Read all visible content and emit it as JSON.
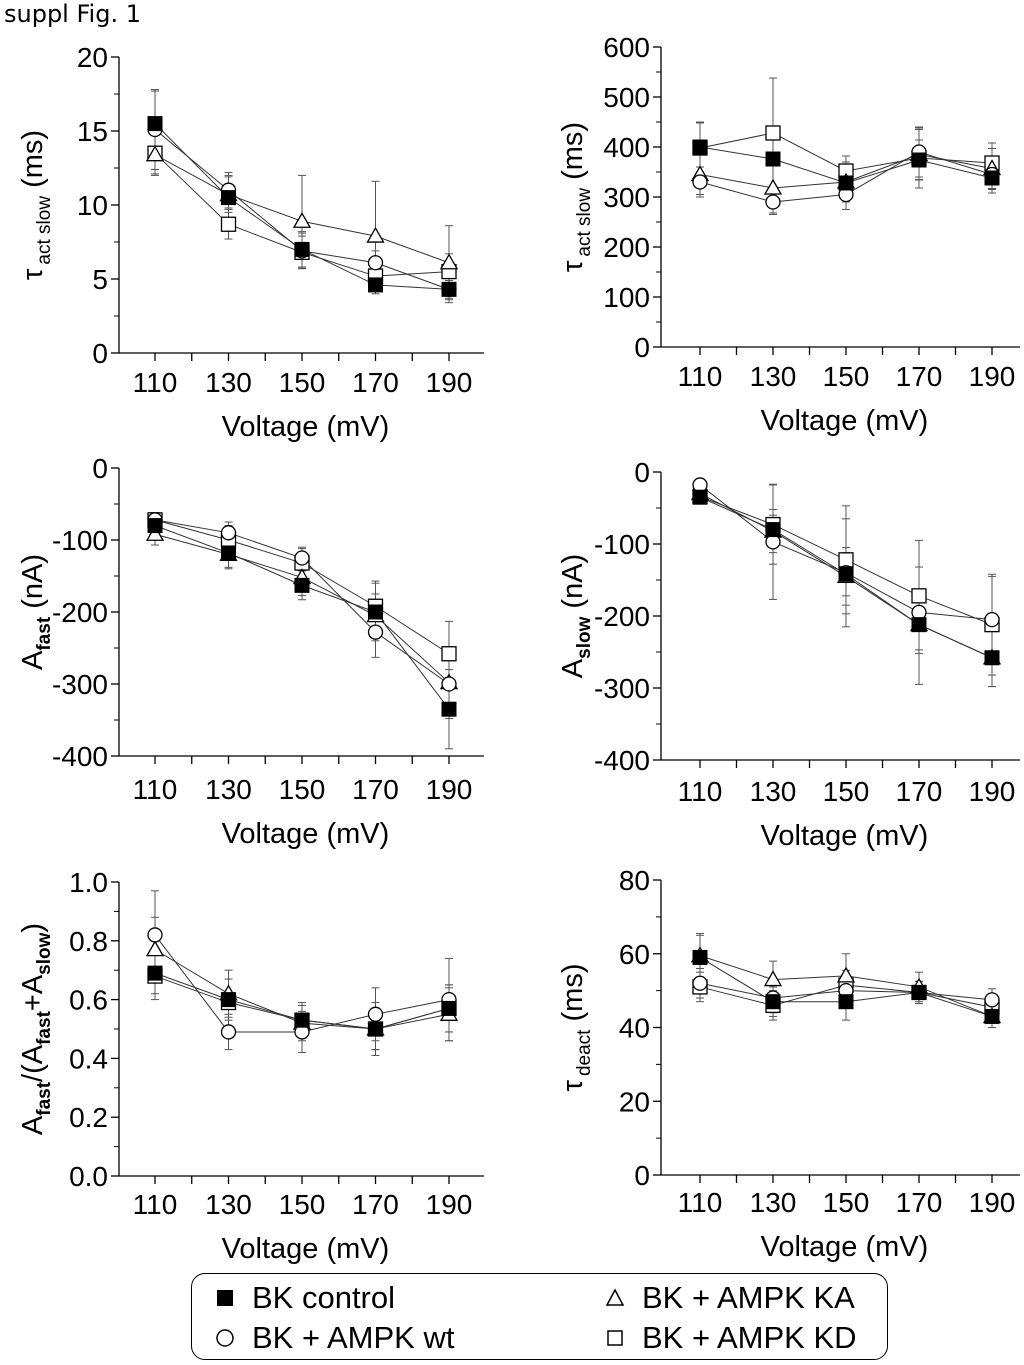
{
  "figure_label": "suppl Fig. 1",
  "markers": {
    "fill_closed": "#000000",
    "fill_open": "#ffffff",
    "line": "#333333"
  },
  "legend": [
    {
      "label": "BK control",
      "marker": "filled-square"
    },
    {
      "label": "BK + AMPK wt",
      "marker": "open-circle"
    },
    {
      "label": "BK + AMPK KA",
      "marker": "open-triangle"
    },
    {
      "label": "BK + AMPK KD",
      "marker": "open-square"
    }
  ],
  "chart_data": [
    {
      "type": "line",
      "ylabel_main": "τ",
      "ylabel_sub": "act slow",
      "ylabel_tail": "(ms)",
      "xlabel": "Voltage (mV)",
      "categories": [
        "110",
        "130",
        "150",
        "170",
        "190"
      ],
      "ylim": [
        0,
        20
      ],
      "yticks": [
        "0",
        "5",
        "10",
        "15",
        "20"
      ],
      "series": [
        {
          "name": "BK control",
          "marker": "filled-square",
          "values": [
            15.5,
            10.5,
            7.0,
            4.6,
            4.3
          ],
          "err": [
            2.2,
            1.5,
            1.2,
            0.6,
            0.6
          ]
        },
        {
          "name": "BK + AMPK wt",
          "marker": "open-circle",
          "values": [
            15.1,
            11.0,
            6.9,
            6.1,
            4.3
          ],
          "err": [
            2.7,
            1.2,
            1.2,
            0.8,
            0.9
          ]
        },
        {
          "name": "BK + AMPK KA",
          "marker": "open-triangle",
          "values": [
            13.4,
            10.7,
            8.9,
            7.9,
            6.1
          ],
          "err": [
            1.3,
            1.2,
            3.1,
            3.7,
            2.5
          ]
        },
        {
          "name": "BK + AMPK KD",
          "marker": "open-square",
          "values": [
            13.5,
            8.7,
            6.8,
            5.2,
            5.5
          ],
          "err": [
            1.5,
            1.0,
            1.1,
            1.0,
            1.2
          ]
        }
      ]
    },
    {
      "type": "line",
      "ylabel_main": "τ",
      "ylabel_sub": "act slow",
      "ylabel_tail": "(ms)",
      "xlabel": "Voltage (mV)",
      "categories": [
        "110",
        "130",
        "150",
        "170",
        "190"
      ],
      "ylim": [
        0,
        600
      ],
      "yticks": [
        "0",
        "100",
        "200",
        "300",
        "400",
        "500",
        "600"
      ],
      "series": [
        {
          "name": "BK control",
          "marker": "filled-square",
          "values": [
            400,
            376,
            328,
            374,
            338
          ],
          "err": [
            50,
            60,
            30,
            40,
            30
          ]
        },
        {
          "name": "BK + AMPK wt",
          "marker": "open-circle",
          "values": [
            330,
            290,
            305,
            390,
            345
          ],
          "err": [
            30,
            25,
            30,
            50,
            30
          ]
        },
        {
          "name": "BK + AMPK KA",
          "marker": "open-triangle",
          "values": [
            345,
            318,
            330,
            385,
            357
          ],
          "err": [
            40,
            50,
            40,
            50,
            40
          ]
        },
        {
          "name": "BK + AMPK KD",
          "marker": "open-square",
          "values": [
            398,
            428,
            352,
            378,
            368
          ],
          "err": [
            50,
            110,
            30,
            60,
            40
          ]
        }
      ]
    },
    {
      "type": "line",
      "ylabel_main": "A",
      "ylabel_sub": "fast",
      "ylabel_tail": "(nA)",
      "xlabel": "Voltage (mV)",
      "categories": [
        "110",
        "130",
        "150",
        "170",
        "190"
      ],
      "ylim": [
        -400,
        0
      ],
      "yticks": [
        "-400",
        "-300",
        "-200",
        "-100",
        "0"
      ],
      "series": [
        {
          "name": "BK control",
          "marker": "filled-square",
          "values": [
            -80,
            -118,
            -163,
            -200,
            -335
          ],
          "err": [
            15,
            20,
            20,
            40,
            55
          ]
        },
        {
          "name": "BK + AMPK wt",
          "marker": "open-circle",
          "values": [
            -72,
            -90,
            -125,
            -228,
            -300
          ],
          "err": [
            10,
            15,
            15,
            35,
            40
          ]
        },
        {
          "name": "BK + AMPK KA",
          "marker": "open-triangle",
          "values": [
            -92,
            -120,
            -152,
            -205,
            -298
          ],
          "err": [
            15,
            20,
            25,
            30,
            50
          ]
        },
        {
          "name": "BK + AMPK KD",
          "marker": "open-square",
          "values": [
            -72,
            -100,
            -132,
            -192,
            -258
          ],
          "err": [
            10,
            20,
            20,
            35,
            45
          ]
        }
      ]
    },
    {
      "type": "line",
      "ylabel_main": "A",
      "ylabel_sub": "slow",
      "ylabel_tail": "(nA)",
      "xlabel": "Voltage (mV)",
      "categories": [
        "110",
        "130",
        "150",
        "170",
        "190"
      ],
      "ylim": [
        -400,
        0
      ],
      "yticks": [
        "-400",
        "-300",
        "-200",
        "-100",
        "0"
      ],
      "series": [
        {
          "name": "BK control",
          "marker": "filled-square",
          "values": [
            -35,
            -80,
            -142,
            -212,
            -258
          ],
          "err": [
            8,
            20,
            30,
            40,
            40
          ]
        },
        {
          "name": "BK + AMPK wt",
          "marker": "open-circle",
          "values": [
            -18,
            -97,
            -140,
            -195,
            -205
          ],
          "err": [
            5,
            80,
            75,
            100,
            60
          ]
        },
        {
          "name": "BK + AMPK KA",
          "marker": "open-triangle",
          "values": [
            -30,
            -82,
            -145,
            -212,
            -258
          ],
          "err": [
            8,
            30,
            40,
            35,
            40
          ]
        },
        {
          "name": "BK + AMPK KD",
          "marker": "open-square",
          "values": [
            -34,
            -73,
            -122,
            -172,
            -212
          ],
          "err": [
            8,
            55,
            75,
            40,
            70
          ]
        }
      ]
    },
    {
      "type": "line",
      "ylabel_main": "A",
      "ylabel_sub": "fast",
      "ylabel_ratio": true,
      "xlabel": "Voltage (mV)",
      "categories": [
        "110",
        "130",
        "150",
        "170",
        "190"
      ],
      "ylim": [
        0,
        1
      ],
      "yticks": [
        "0.0",
        "0.2",
        "0.4",
        "0.6",
        "0.8",
        "1.0"
      ],
      "series": [
        {
          "name": "BK control",
          "marker": "filled-square",
          "values": [
            0.69,
            0.6,
            0.53,
            0.5,
            0.57
          ],
          "err": [
            0.07,
            0.07,
            0.05,
            0.07,
            0.08
          ]
        },
        {
          "name": "BK + AMPK wt",
          "marker": "open-circle",
          "values": [
            0.82,
            0.49,
            0.49,
            0.55,
            0.6
          ],
          "err": [
            0.15,
            0.06,
            0.07,
            0.09,
            0.14
          ]
        },
        {
          "name": "BK + AMPK KA",
          "marker": "open-triangle",
          "values": [
            0.77,
            0.62,
            0.52,
            0.5,
            0.55
          ],
          "err": [
            0.11,
            0.08,
            0.06,
            0.09,
            0.09
          ]
        },
        {
          "name": "BK + AMPK KD",
          "marker": "open-square",
          "values": [
            0.68,
            0.59,
            0.53,
            0.5,
            0.57
          ],
          "err": [
            0.08,
            0.08,
            0.06,
            0.07,
            0.08
          ]
        }
      ]
    },
    {
      "type": "line",
      "ylabel_main": "τ",
      "ylabel_sub": "deact",
      "ylabel_tail": "(ms)",
      "xlabel": "Voltage (mV)",
      "categories": [
        "110",
        "130",
        "150",
        "170",
        "190"
      ],
      "ylim": [
        0,
        80
      ],
      "yticks": [
        "0",
        "20",
        "40",
        "60",
        "80"
      ],
      "series": [
        {
          "name": "BK control",
          "marker": "filled-square",
          "values": [
            59,
            47,
            47,
            49.5,
            43
          ],
          "err": [
            6,
            4,
            5,
            3,
            3
          ]
        },
        {
          "name": "BK + AMPK wt",
          "marker": "open-circle",
          "values": [
            52,
            48,
            50,
            49.5,
            47.5
          ],
          "err": [
            4,
            4,
            4,
            3,
            3
          ]
        },
        {
          "name": "BK + AMPK KA",
          "marker": "open-triangle",
          "values": [
            59.5,
            53,
            54,
            51,
            43
          ],
          "err": [
            6,
            5,
            6,
            4,
            3
          ]
        },
        {
          "name": "BK + AMPK KD",
          "marker": "open-square",
          "values": [
            51,
            46,
            51.5,
            49.5,
            45.5
          ],
          "err": [
            4,
            4,
            4,
            3,
            3
          ]
        }
      ]
    }
  ]
}
